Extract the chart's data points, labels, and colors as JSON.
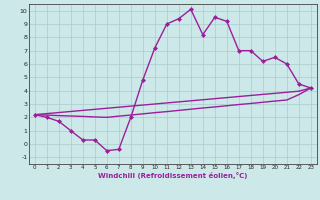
{
  "x": [
    0,
    1,
    2,
    3,
    4,
    5,
    6,
    7,
    8,
    9,
    10,
    11,
    12,
    13,
    14,
    15,
    16,
    17,
    18,
    19,
    20,
    21,
    22,
    23
  ],
  "line1": [
    2.2,
    2.0,
    1.7,
    1.0,
    0.3,
    0.3,
    -0.5,
    -0.4,
    2.0,
    4.8,
    7.2,
    9.0,
    9.4,
    10.1,
    8.2,
    9.5,
    9.2,
    7.0,
    7.0,
    6.2,
    6.5,
    6.0,
    4.5,
    4.2
  ],
  "line2": [
    2.2,
    2.28,
    2.36,
    2.44,
    2.52,
    2.6,
    2.68,
    2.76,
    2.84,
    2.92,
    3.0,
    3.08,
    3.16,
    3.24,
    3.32,
    3.4,
    3.48,
    3.56,
    3.64,
    3.72,
    3.8,
    3.88,
    3.96,
    4.2
  ],
  "line3": [
    2.2,
    2.17,
    2.13,
    2.1,
    2.07,
    2.03,
    2.0,
    2.09,
    2.17,
    2.26,
    2.35,
    2.43,
    2.52,
    2.61,
    2.7,
    2.78,
    2.87,
    2.96,
    3.04,
    3.13,
    3.22,
    3.3,
    3.7,
    4.2
  ],
  "line_color": "#9b1f9b",
  "bg_color": "#cde8e8",
  "grid_color": "#b0d4d4",
  "xlabel": "Windchill (Refroidissement éolien,°C)",
  "xlim": [
    -0.5,
    23.5
  ],
  "ylim": [
    -1.5,
    10.5
  ],
  "xticks": [
    0,
    1,
    2,
    3,
    4,
    5,
    6,
    7,
    8,
    9,
    10,
    11,
    12,
    13,
    14,
    15,
    16,
    17,
    18,
    19,
    20,
    21,
    22,
    23
  ],
  "yticks": [
    -1,
    0,
    1,
    2,
    3,
    4,
    5,
    6,
    7,
    8,
    9,
    10
  ],
  "marker": "D",
  "markersize": 2.0,
  "linewidth": 1.0
}
